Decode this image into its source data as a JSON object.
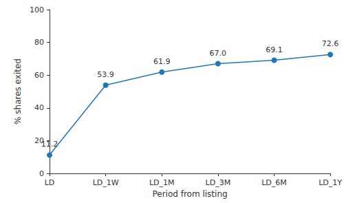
{
  "chart_data": {
    "type": "line",
    "x_label": "Period from listing",
    "y_label": "% shares exited",
    "categories": [
      "LD",
      "LD_1W",
      "LD_1M",
      "LD_3M",
      "LD_6M",
      "LD_1Y"
    ],
    "values": [
      11.2,
      53.9,
      61.9,
      67.0,
      69.1,
      72.6
    ],
    "value_labels": [
      "11.2",
      "53.9",
      "61.9",
      "67.0",
      "69.1",
      "72.6"
    ],
    "color": "#1f77b4",
    "marker": "circle",
    "line_style": "solid",
    "ylim": [
      0,
      100
    ],
    "yticks": [
      0,
      20,
      40,
      60,
      80,
      100
    ],
    "grid": false,
    "data_labels": true
  }
}
